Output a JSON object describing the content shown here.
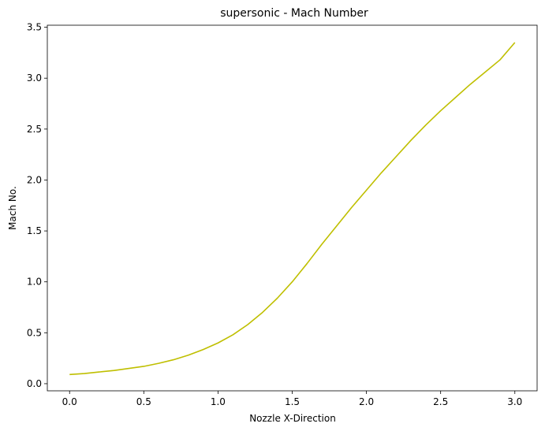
{
  "chart_data": {
    "type": "line",
    "title": "supersonic - Mach Number",
    "xlabel": "Nozzle X-Direction",
    "ylabel": "Mach No.",
    "xlim": [
      -0.15,
      3.15
    ],
    "ylim": [
      -0.07,
      3.52
    ],
    "xticks": [
      0.0,
      0.5,
      1.0,
      1.5,
      2.0,
      2.5,
      3.0
    ],
    "xtick_labels": [
      "0.0",
      "0.5",
      "1.0",
      "1.5",
      "2.0",
      "2.5",
      "3.0"
    ],
    "yticks": [
      0.0,
      0.5,
      1.0,
      1.5,
      2.0,
      2.5,
      3.0,
      3.5
    ],
    "ytick_labels": [
      "0.0",
      "0.5",
      "1.0",
      "1.5",
      "2.0",
      "2.5",
      "3.0",
      "3.5"
    ],
    "grid": false,
    "series": [
      {
        "color": "#bfbf00",
        "x": [
          0.0,
          0.1,
          0.2,
          0.3,
          0.4,
          0.5,
          0.6,
          0.7,
          0.8,
          0.9,
          1.0,
          1.1,
          1.2,
          1.3,
          1.4,
          1.5,
          1.6,
          1.7,
          1.8,
          1.9,
          2.0,
          2.1,
          2.2,
          2.3,
          2.4,
          2.5,
          2.6,
          2.7,
          2.8,
          2.9,
          3.0
        ],
        "y": [
          0.09,
          0.1,
          0.115,
          0.13,
          0.15,
          0.17,
          0.2,
          0.235,
          0.28,
          0.335,
          0.4,
          0.48,
          0.58,
          0.7,
          0.84,
          1.0,
          1.18,
          1.37,
          1.55,
          1.73,
          1.9,
          2.07,
          2.23,
          2.39,
          2.54,
          2.68,
          2.81,
          2.94,
          3.06,
          3.18,
          3.35
        ]
      }
    ]
  }
}
